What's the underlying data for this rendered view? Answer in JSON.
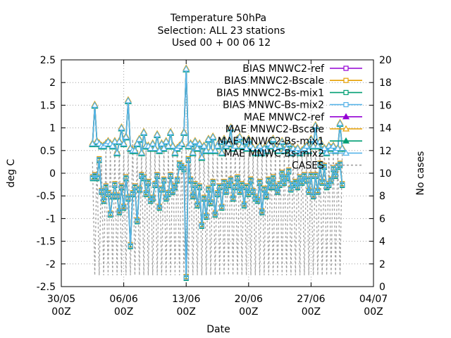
{
  "title_lines": [
    "Temperature 50hPa",
    "Selection: ALL      23 stations",
    "Used 00 + 00 06 12"
  ],
  "chart_data": {
    "type": "line",
    "title": "Temperature 50hPa",
    "xlabel": "Date",
    "ylabel": "deg C",
    "y2label": "No cases",
    "x_range": [
      "2024-05-30T00",
      "2024-07-04T00"
    ],
    "ylim": [
      -2.5,
      2.5
    ],
    "y2lim": [
      0,
      20
    ],
    "grid": true,
    "legend_position": "top-right",
    "x_ticks": [
      {
        "line1": "30/05",
        "line2": "00Z",
        "date": "2024-05-30T00"
      },
      {
        "line1": "06/06",
        "line2": "00Z",
        "date": "2024-06-06T00"
      },
      {
        "line1": "13/06",
        "line2": "00Z",
        "date": "2024-06-13T00"
      },
      {
        "line1": "20/06",
        "line2": "00Z",
        "date": "2024-06-20T00"
      },
      {
        "line1": "27/06",
        "line2": "00Z",
        "date": "2024-06-27T00"
      },
      {
        "line1": "04/07",
        "line2": "00Z",
        "date": "2024-07-04T00"
      }
    ],
    "y_ticks": [
      "-2.5",
      "-2",
      "-1.5",
      "-1",
      "-0.5",
      "0",
      "0.5",
      "1",
      "1.5",
      "2",
      "2.5"
    ],
    "y2_ticks": [
      "0",
      "2",
      "4",
      "6",
      "8",
      "10",
      "12",
      "14",
      "16",
      "18",
      "20"
    ],
    "series": [
      {
        "name": "BIAS MNWC2-ref",
        "color": "#9400d3",
        "marker": "square-open",
        "axis": "y",
        "dash": false
      },
      {
        "name": "BIAS MNWC2-Bscale",
        "color": "#e69f00",
        "marker": "square-open",
        "axis": "y",
        "dash": false
      },
      {
        "name": "BIAS MNWC2-Bs-mix1",
        "color": "#009e73",
        "marker": "square-open",
        "axis": "y",
        "dash": false
      },
      {
        "name": "BIAS MNWC-Bs-mix2",
        "color": "#56b4e9",
        "marker": "square-open",
        "axis": "y",
        "dash": false
      },
      {
        "name": "MAE MNWC2-ref",
        "color": "#9400d3",
        "marker": "triangle-filled",
        "axis": "y",
        "dash": false
      },
      {
        "name": "MAE MNWC2-Bscale",
        "color": "#e69f00",
        "marker": "triangle-open",
        "axis": "y",
        "dash": false
      },
      {
        "name": "MAE MNWC2-Bs-mix1",
        "color": "#009e73",
        "marker": "triangle-filled",
        "axis": "y",
        "dash": false
      },
      {
        "name": "MAE MNWC-Bs-mix2",
        "color": "#56b4e9",
        "marker": "triangle-open",
        "axis": "y",
        "dash": false
      },
      {
        "name": "CASES",
        "color": "#a0a0a0",
        "marker": "none",
        "axis": "y2",
        "dash": true
      }
    ],
    "bias_x": [
      "2024-06-02T12",
      "2024-06-02T18",
      "2024-06-03T00",
      "2024-06-03T06",
      "2024-06-03T12",
      "2024-06-03T18",
      "2024-06-04T00",
      "2024-06-04T06",
      "2024-06-04T12",
      "2024-06-04T18",
      "2024-06-05T00",
      "2024-06-05T06",
      "2024-06-05T12",
      "2024-06-05T18",
      "2024-06-06T00",
      "2024-06-06T06",
      "2024-06-06T12",
      "2024-06-06T18",
      "2024-06-07T00",
      "2024-06-07T06",
      "2024-06-07T12",
      "2024-06-07T18",
      "2024-06-08T00",
      "2024-06-08T06",
      "2024-06-08T12",
      "2024-06-08T18",
      "2024-06-09T00",
      "2024-06-09T06",
      "2024-06-09T12",
      "2024-06-09T18",
      "2024-06-10T00",
      "2024-06-10T06",
      "2024-06-10T12",
      "2024-06-10T18",
      "2024-06-11T00",
      "2024-06-11T06",
      "2024-06-11T12",
      "2024-06-11T18",
      "2024-06-12T00",
      "2024-06-12T06",
      "2024-06-12T12",
      "2024-06-12T18",
      "2024-06-13T00",
      "2024-06-13T06",
      "2024-06-13T12",
      "2024-06-13T18",
      "2024-06-14T00",
      "2024-06-14T06",
      "2024-06-14T12",
      "2024-06-14T18",
      "2024-06-15T00",
      "2024-06-15T06",
      "2024-06-15T12",
      "2024-06-15T18",
      "2024-06-16T00",
      "2024-06-16T06",
      "2024-06-16T12",
      "2024-06-16T18",
      "2024-06-17T00",
      "2024-06-17T06",
      "2024-06-17T12",
      "2024-06-17T18",
      "2024-06-18T00",
      "2024-06-18T06",
      "2024-06-18T12",
      "2024-06-18T18",
      "2024-06-19T00",
      "2024-06-19T06",
      "2024-06-19T12",
      "2024-06-19T18",
      "2024-06-20T00",
      "2024-06-20T06",
      "2024-06-20T12",
      "2024-06-20T18",
      "2024-06-21T00",
      "2024-06-21T06",
      "2024-06-21T12",
      "2024-06-21T18",
      "2024-06-22T00",
      "2024-06-22T06",
      "2024-06-22T12",
      "2024-06-22T18",
      "2024-06-23T00",
      "2024-06-23T06",
      "2024-06-23T12",
      "2024-06-23T18",
      "2024-06-24T00",
      "2024-06-24T06",
      "2024-06-24T12",
      "2024-06-24T18",
      "2024-06-25T00",
      "2024-06-25T06",
      "2024-06-25T12",
      "2024-06-25T18",
      "2024-06-26T00",
      "2024-06-26T06",
      "2024-06-26T12",
      "2024-06-26T18",
      "2024-06-27T00",
      "2024-06-27T06",
      "2024-06-27T12",
      "2024-06-27T18",
      "2024-06-28T00",
      "2024-06-28T06",
      "2024-06-28T12",
      "2024-06-28T18",
      "2024-06-29T00",
      "2024-06-29T06",
      "2024-06-29T12",
      "2024-06-29T18",
      "2024-06-30T00",
      "2024-06-30T06",
      "2024-06-30T12"
    ],
    "bias_values": [
      -0.1,
      -0.05,
      -0.1,
      0.3,
      -0.4,
      -0.6,
      -0.3,
      -0.45,
      -0.9,
      -0.5,
      -0.25,
      -0.5,
      -0.85,
      -0.3,
      -0.75,
      -0.1,
      -0.55,
      -1.6,
      -0.45,
      -0.3,
      -1.05,
      -0.35,
      -0.05,
      -0.1,
      -0.45,
      -0.2,
      -0.6,
      -0.55,
      -0.25,
      -0.05,
      -0.75,
      -0.35,
      -0.15,
      -0.55,
      -0.45,
      -0.05,
      -0.4,
      -0.3,
      -0.15,
      0.2,
      0.15,
      0.1,
      -2.3,
      0.3,
      -0.15,
      -0.5,
      -0.25,
      -0.7,
      -0.3,
      -1.15,
      -0.55,
      -0.95,
      -0.35,
      -0.65,
      -0.2,
      -0.9,
      -0.45,
      -0.3,
      -0.75,
      -0.2,
      -0.4,
      -0.25,
      -0.15,
      -0.55,
      -0.3,
      -0.1,
      -0.4,
      -0.25,
      -0.7,
      -0.3,
      -0.45,
      -0.15,
      -0.4,
      -0.55,
      -0.6,
      -0.2,
      -0.85,
      -0.35,
      -0.5,
      -0.15,
      -0.3,
      -0.1,
      -0.3,
      -0.4,
      -0.25,
      0.0,
      -0.2,
      -0.1,
      0.05,
      -0.35,
      -0.25,
      -0.2,
      -0.3,
      -0.1,
      -0.2,
      -0.05,
      -0.15,
      -0.4,
      -0.05,
      -0.5,
      -0.05,
      -0.4,
      0.2,
      -0.2,
      0.15,
      -0.3,
      -0.25,
      -0.15,
      0.1,
      -0.05,
      0.15,
      0.2,
      -0.25
    ],
    "mae_values": [
      0.65,
      1.5,
      0.7,
      0.65,
      0.6,
      0.6,
      0.65,
      0.7,
      0.65,
      0.6,
      0.7,
      0.45,
      0.7,
      1.0,
      0.65,
      0.8,
      1.6,
      0.55,
      0.5,
      0.5,
      0.65,
      0.75,
      0.45,
      0.9,
      0.6,
      0.6,
      0.55,
      0.65,
      0.55,
      0.85,
      0.5,
      0.65,
      0.55,
      0.7,
      0.6,
      0.9,
      0.6,
      0.45,
      0.55,
      0.6,
      0.65,
      0.9,
      2.3,
      0.6,
      0.65,
      0.45,
      0.7,
      0.55,
      0.65,
      0.35,
      0.6,
      0.5,
      0.75,
      0.5,
      0.8,
      0.5,
      0.6,
      0.7,
      0.45,
      0.75,
      0.6,
      0.65,
      1.0,
      0.55,
      0.6,
      0.75,
      0.8,
      0.6,
      0.7,
      0.55,
      0.75,
      0.6,
      0.55,
      0.45,
      0.55,
      0.6,
      0.45,
      0.55,
      0.5,
      0.65,
      0.6,
      0.75,
      0.55,
      0.5,
      0.6,
      0.7,
      0.5,
      0.55,
      0.65,
      0.45,
      0.55,
      0.5,
      0.55,
      0.45,
      0.5,
      0.55,
      0.6,
      0.5,
      0.75,
      0.6,
      1.05,
      0.6,
      0.7,
      0.5,
      0.55,
      0.45,
      0.6,
      0.55,
      0.6,
      0.5,
      0.55,
      1.1,
      0.55
    ],
    "cases_x": [
      "2024-06-02T12",
      "2024-06-02T18",
      "2024-06-03T00",
      "2024-06-03T06",
      "2024-06-03T12",
      "2024-06-03T18",
      "2024-06-04T00",
      "2024-06-04T06",
      "2024-06-04T12",
      "2024-06-04T18",
      "2024-06-05T00",
      "2024-06-05T06",
      "2024-06-05T12",
      "2024-06-05T18",
      "2024-06-06T00",
      "2024-06-06T06",
      "2024-06-06T12",
      "2024-06-06T18",
      "2024-06-07T00",
      "2024-06-07T06",
      "2024-06-07T12",
      "2024-06-07T18",
      "2024-06-08T00",
      "2024-06-08T06",
      "2024-06-08T12",
      "2024-06-08T18",
      "2024-06-09T00",
      "2024-06-09T06",
      "2024-06-09T12",
      "2024-06-09T18",
      "2024-06-10T00",
      "2024-06-10T06",
      "2024-06-10T12",
      "2024-06-10T18",
      "2024-06-11T00",
      "2024-06-11T06",
      "2024-06-11T12",
      "2024-06-11T18",
      "2024-06-12T00",
      "2024-06-12T06",
      "2024-06-12T12",
      "2024-06-12T18",
      "2024-06-13T00",
      "2024-06-13T06",
      "2024-06-13T12",
      "2024-06-13T18",
      "2024-06-14T00",
      "2024-06-14T06",
      "2024-06-14T12",
      "2024-06-14T18",
      "2024-06-15T00",
      "2024-06-15T06",
      "2024-06-15T12",
      "2024-06-15T18",
      "2024-06-16T00",
      "2024-06-16T06",
      "2024-06-16T12",
      "2024-06-16T18",
      "2024-06-17T00",
      "2024-06-17T06",
      "2024-06-17T12",
      "2024-06-17T18",
      "2024-06-18T00",
      "2024-06-18T06",
      "2024-06-18T12",
      "2024-06-18T18",
      "2024-06-19T00",
      "2024-06-19T06",
      "2024-06-19T12",
      "2024-06-19T18",
      "2024-06-20T00",
      "2024-06-20T06",
      "2024-06-20T12",
      "2024-06-20T18",
      "2024-06-21T00",
      "2024-06-21T06",
      "2024-06-21T12",
      "2024-06-21T18",
      "2024-06-22T00",
      "2024-06-22T06",
      "2024-06-22T12",
      "2024-06-22T18",
      "2024-06-23T00",
      "2024-06-23T06",
      "2024-06-23T12",
      "2024-06-23T18",
      "2024-06-24T00",
      "2024-06-24T06",
      "2024-06-24T12",
      "2024-06-24T18",
      "2024-06-25T00",
      "2024-06-25T06",
      "2024-06-25T12",
      "2024-06-25T18",
      "2024-06-26T00",
      "2024-06-26T06",
      "2024-06-26T12",
      "2024-06-26T18",
      "2024-06-27T00",
      "2024-06-27T06",
      "2024-06-27T12",
      "2024-06-27T18",
      "2024-06-28T00",
      "2024-06-28T06",
      "2024-06-28T12",
      "2024-06-28T18",
      "2024-06-29T00",
      "2024-06-29T06",
      "2024-06-29T12",
      "2024-06-29T18",
      "2024-06-30T00",
      "2024-06-30T06",
      "2024-06-30T12"
    ],
    "cases_values": [
      11,
      1,
      11,
      1,
      11,
      1,
      12,
      1,
      12,
      1,
      12,
      1,
      12,
      1,
      12,
      1,
      12,
      1,
      13,
      1,
      12,
      1,
      12,
      1,
      12,
      1,
      12,
      1,
      12,
      1,
      12,
      1,
      12,
      1,
      12,
      1,
      12,
      1,
      12,
      1,
      12,
      1,
      12,
      1,
      12,
      1,
      12,
      1,
      12,
      1,
      12,
      1,
      12,
      1,
      12,
      1,
      12,
      1,
      12,
      1,
      12,
      1,
      12,
      1,
      12,
      1,
      12,
      1,
      12,
      1,
      12,
      1,
      12,
      1,
      12,
      1,
      12,
      1,
      12,
      1,
      12,
      1,
      12,
      1,
      12,
      1,
      12,
      1,
      12,
      1,
      12,
      1,
      12,
      1,
      12,
      1,
      12,
      1,
      12,
      1,
      12,
      1,
      12,
      1,
      12,
      1,
      12,
      1,
      12,
      1,
      12,
      1,
      12
    ]
  }
}
